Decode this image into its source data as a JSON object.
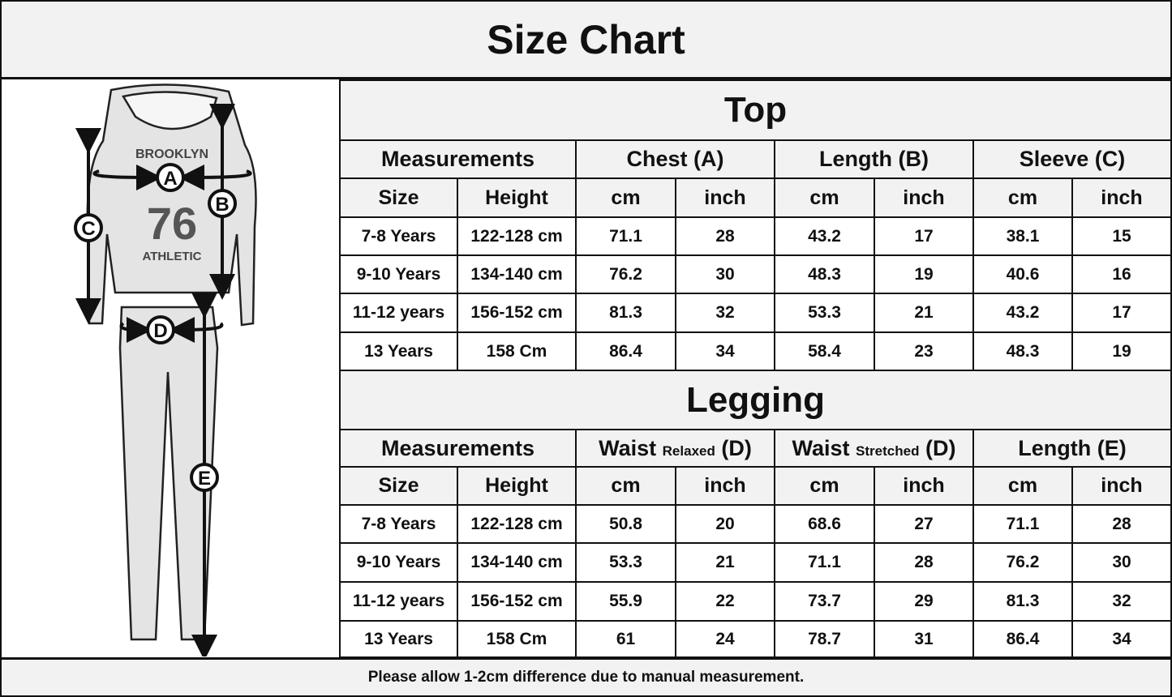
{
  "title": "Size Chart",
  "illustration": {
    "labels": [
      "A",
      "B",
      "C",
      "D",
      "E"
    ],
    "print_text": [
      "BROOKLYN",
      "76",
      "ATHLETIC"
    ]
  },
  "top": {
    "section": "Top",
    "header": [
      "Measurements",
      "Chest (A)",
      "Length (B)",
      "Sleeve (C)"
    ],
    "sub": [
      "Size",
      "Height",
      "cm",
      "inch",
      "cm",
      "inch",
      "cm",
      "inch"
    ],
    "rows": [
      [
        "7-8 Years",
        "122-128 cm",
        "71.1",
        "28",
        "43.2",
        "17",
        "38.1",
        "15"
      ],
      [
        "9-10 Years",
        "134-140 cm",
        "76.2",
        "30",
        "48.3",
        "19",
        "40.6",
        "16"
      ],
      [
        "11-12 years",
        "156-152 cm",
        "81.3",
        "32",
        "53.3",
        "21",
        "43.2",
        "17"
      ],
      [
        "13 Years",
        "158 Cm",
        "86.4",
        "34",
        "58.4",
        "23",
        "48.3",
        "19"
      ]
    ]
  },
  "legging": {
    "section": "Legging",
    "header": [
      {
        "main": "Measurements"
      },
      {
        "main": "Waist",
        "small": "Relaxed",
        "suffix": "(D)"
      },
      {
        "main": "Waist",
        "small": "Stretched",
        "suffix": "(D)"
      },
      {
        "main": "Length (E)"
      }
    ],
    "sub": [
      "Size",
      "Height",
      "cm",
      "inch",
      "cm",
      "inch",
      "cm",
      "inch"
    ],
    "rows": [
      [
        "7-8 Years",
        "122-128 cm",
        "50.8",
        "20",
        "68.6",
        "27",
        "71.1",
        "28"
      ],
      [
        "9-10 Years",
        "134-140 cm",
        "53.3",
        "21",
        "71.1",
        "28",
        "76.2",
        "30"
      ],
      [
        "11-12 years",
        "156-152 cm",
        "55.9",
        "22",
        "73.7",
        "29",
        "81.3",
        "32"
      ],
      [
        "13 Years",
        "158 Cm",
        "61",
        "24",
        "78.7",
        "31",
        "86.4",
        "34"
      ]
    ]
  },
  "footer": "Please allow 1-2cm difference due to manual measurement.",
  "colors": {
    "header_bg": "#f2f2f2",
    "border": "#111111"
  }
}
